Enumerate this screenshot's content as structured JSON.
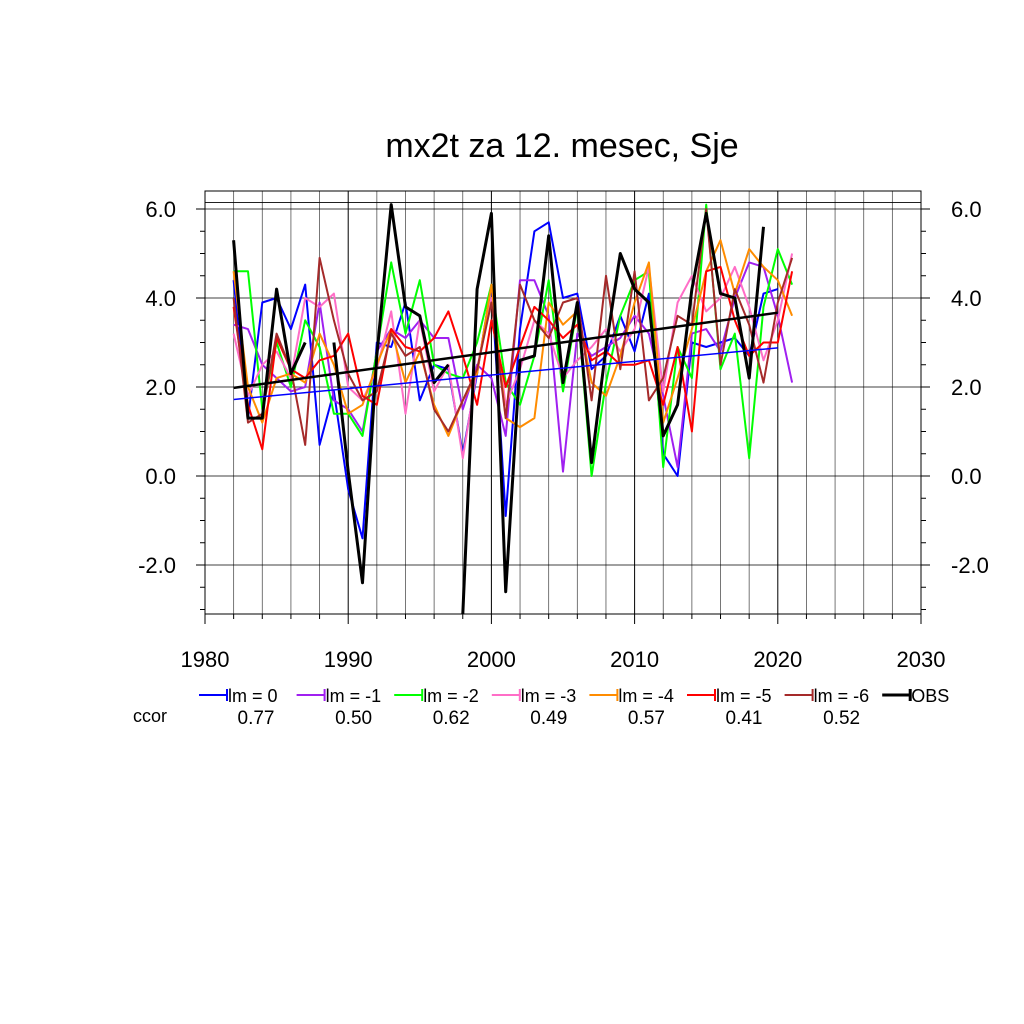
{
  "chart_data": {
    "type": "line",
    "title": "mx2t za 12. mesec, Sje",
    "xlabel": "",
    "ylabel": "",
    "xlim": [
      1980,
      2030
    ],
    "ylim": [
      -3.1,
      6.1
    ],
    "x_ticks": [
      1980,
      1990,
      2000,
      2010,
      2020,
      2030
    ],
    "x_tick_labels": [
      "1980",
      "1990",
      "2000",
      "2010",
      "2020",
      "2030"
    ],
    "y_ticks": [
      -2,
      0,
      2,
      4,
      6
    ],
    "y_tick_labels": [
      "-2.0",
      "0.0",
      "2.0",
      "4.0",
      "6.0"
    ],
    "grid": true,
    "legend_position": "bottom",
    "ccor_label": "ccor",
    "ccor_color": "#0000ff",
    "series": [
      {
        "name": "lm = 0",
        "color": "#0000ff",
        "ccor": "0.77",
        "width": 2,
        "x": [
          1982,
          1983,
          1984,
          1985,
          1986,
          1987,
          1988,
          1989,
          1990,
          1991,
          1992,
          1993,
          1994,
          1995,
          1996,
          1997,
          1998,
          1999,
          2000,
          2001,
          2002,
          2003,
          2004,
          2005,
          2006,
          2007,
          2008,
          2009,
          2010,
          2011,
          2012,
          2013,
          2014,
          2015,
          2016,
          2017,
          2018,
          2019,
          2020
        ],
        "y": [
          4.4,
          1.3,
          3.9,
          4.0,
          3.3,
          4.3,
          0.7,
          1.9,
          -0.3,
          -1.4,
          3.0,
          2.9,
          3.9,
          1.7,
          2.5,
          2.4,
          0.5,
          2.3,
          4.3,
          -0.9,
          3.3,
          5.5,
          5.7,
          4.0,
          4.1,
          2.4,
          2.7,
          3.6,
          2.8,
          4.1,
          0.5,
          0.0,
          3.0,
          2.9,
          3.0,
          3.1,
          2.7,
          4.1,
          4.2
        ]
      },
      {
        "name": "lm = -1",
        "color": "#a020f0",
        "ccor": "0.50",
        "width": 2,
        "x": [
          1982,
          1983,
          1984,
          1985,
          1986,
          1987,
          1988,
          1989,
          1990,
          1991,
          1992,
          1993,
          1994,
          1995,
          1996,
          1997,
          1998,
          1999,
          2000,
          2001,
          2002,
          2003,
          2004,
          2005,
          2006,
          2007,
          2008,
          2009,
          2010,
          2011,
          2012,
          2013,
          2014,
          2015,
          2016,
          2017,
          2018,
          2019,
          2020,
          2021
        ],
        "y": [
          3.4,
          3.3,
          2.5,
          2.2,
          1.9,
          2.0,
          3.9,
          1.7,
          1.5,
          1.0,
          2.8,
          3.3,
          3.1,
          3.5,
          3.1,
          3.1,
          1.5,
          2.5,
          2.2,
          0.9,
          4.4,
          4.4,
          3.6,
          0.1,
          3.2,
          2.7,
          2.9,
          3.1,
          3.6,
          3.2,
          1.8,
          0.2,
          3.2,
          3.3,
          2.8,
          4.0,
          4.8,
          4.7,
          3.6,
          2.1
        ]
      },
      {
        "name": "lm = -2",
        "color": "#00ff00",
        "ccor": "0.62",
        "width": 2,
        "x": [
          1982,
          1983,
          1984,
          1985,
          1986,
          1987,
          1988,
          1989,
          1990,
          1991,
          1992,
          1993,
          1994,
          1995,
          1996,
          1997,
          1998,
          1999,
          2000,
          2001,
          2002,
          2003,
          2004,
          2005,
          2006,
          2007,
          2008,
          2009,
          2010,
          2011,
          2012,
          2013,
          2014,
          2015,
          2016,
          2017,
          2018,
          2019,
          2020,
          2021
        ],
        "y": [
          4.6,
          4.6,
          1.5,
          3.0,
          2.0,
          3.5,
          2.9,
          1.4,
          1.4,
          0.9,
          2.8,
          4.8,
          3.2,
          4.4,
          2.5,
          2.3,
          2.2,
          3.0,
          4.3,
          2.1,
          1.6,
          2.7,
          4.4,
          1.9,
          3.8,
          0.0,
          2.1,
          3.6,
          4.4,
          4.6,
          0.2,
          2.9,
          2.2,
          6.1,
          2.4,
          3.2,
          0.4,
          3.8,
          5.1,
          4.3
        ]
      },
      {
        "name": "lm = -3",
        "color": "#ff6ec7",
        "ccor": "0.49",
        "width": 2,
        "x": [
          1982,
          1983,
          1984,
          1985,
          1986,
          1987,
          1988,
          1989,
          1990,
          1991,
          1992,
          1993,
          1994,
          1995,
          1996,
          1997,
          1998,
          1999,
          2000,
          2001,
          2002,
          2003,
          2004,
          2005,
          2006,
          2007,
          2008,
          2009,
          2010,
          2011,
          2012,
          2013,
          2014,
          2015,
          2016,
          2017,
          2018,
          2019,
          2020,
          2021
        ],
        "y": [
          3.2,
          1.8,
          2.5,
          2.8,
          2.2,
          4.0,
          3.8,
          4.1,
          2.0,
          1.7,
          2.4,
          3.7,
          1.4,
          3.5,
          1.9,
          2.5,
          0.4,
          2.4,
          4.0,
          1.6,
          2.4,
          3.5,
          3.2,
          2.2,
          2.6,
          2.9,
          3.3,
          2.8,
          3.3,
          4.7,
          1.9,
          3.9,
          4.5,
          3.7,
          4.0,
          4.7,
          3.8,
          2.6,
          3.5,
          5.0
        ]
      },
      {
        "name": "lm = -4",
        "color": "#ff8c00",
        "ccor": "0.57",
        "width": 2,
        "x": [
          1982,
          1983,
          1984,
          1985,
          1986,
          1987,
          1988,
          1989,
          1990,
          1991,
          1992,
          1993,
          1994,
          1995,
          1996,
          1997,
          1998,
          1999,
          2000,
          2001,
          2002,
          2003,
          2004,
          2005,
          2006,
          2007,
          2008,
          2009,
          2010,
          2011,
          2012,
          2013,
          2014,
          2015,
          2016,
          2017,
          2018,
          2019,
          2020,
          2021
        ],
        "y": [
          4.6,
          2.0,
          1.2,
          2.2,
          2.3,
          2.1,
          3.2,
          2.5,
          1.4,
          1.6,
          2.5,
          3.3,
          2.1,
          2.8,
          1.6,
          0.9,
          1.7,
          2.3,
          4.3,
          1.3,
          1.1,
          1.3,
          3.9,
          3.4,
          3.7,
          2.1,
          1.8,
          2.7,
          3.9,
          4.8,
          1.2,
          2.2,
          3.3,
          4.6,
          5.3,
          4.1,
          5.1,
          4.7,
          4.4,
          3.6
        ]
      },
      {
        "name": "lm = -5",
        "color": "#ff0000",
        "ccor": "0.41",
        "width": 2,
        "x": [
          1982,
          1983,
          1984,
          1985,
          1986,
          1987,
          1988,
          1989,
          1990,
          1991,
          1992,
          1993,
          1994,
          1995,
          1996,
          1997,
          1998,
          1999,
          2000,
          2001,
          2002,
          2003,
          2004,
          2005,
          2006,
          2007,
          2008,
          2009,
          2010,
          2011,
          2012,
          2013,
          2014,
          2015,
          2016,
          2017,
          2018,
          2019,
          2020,
          2021
        ],
        "y": [
          3.8,
          1.6,
          0.6,
          3.1,
          2.4,
          2.2,
          2.6,
          2.7,
          3.2,
          1.8,
          1.6,
          3.3,
          2.9,
          2.8,
          3.1,
          3.7,
          2.7,
          1.6,
          3.5,
          2.0,
          2.9,
          3.8,
          3.5,
          3.1,
          3.4,
          2.6,
          2.8,
          2.5,
          2.5,
          2.6,
          1.6,
          2.9,
          1.0,
          4.6,
          4.7,
          3.5,
          2.7,
          3.0,
          3.0,
          4.6
        ]
      },
      {
        "name": "lm = -6",
        "color": "#a52a2a",
        "ccor": "0.52",
        "width": 2,
        "x": [
          1982,
          1983,
          1984,
          1985,
          1986,
          1987,
          1988,
          1989,
          1990,
          1991,
          1992,
          1993,
          1994,
          1995,
          1996,
          1997,
          1998,
          1999,
          2000,
          2001,
          2002,
          2003,
          2004,
          2005,
          2006,
          2007,
          2008,
          2009,
          2010,
          2011,
          2012,
          2013,
          2014,
          2015,
          2016,
          2017,
          2018,
          2019,
          2020,
          2021
        ],
        "y": [
          4.0,
          1.2,
          1.4,
          3.2,
          2.4,
          0.7,
          4.9,
          3.5,
          2.3,
          1.7,
          1.9,
          3.2,
          2.7,
          2.9,
          1.5,
          1.0,
          1.7,
          2.4,
          3.9,
          1.3,
          4.3,
          3.5,
          3.1,
          3.9,
          4.0,
          1.7,
          4.5,
          2.4,
          4.6,
          1.7,
          2.2,
          3.6,
          3.4,
          6.0,
          2.5,
          4.2,
          3.4,
          2.1,
          3.9,
          4.9
        ]
      },
      {
        "name": "OBS",
        "color": "#000000",
        "ccor": "",
        "width": 3,
        "segments": [
          {
            "x": [
              1982,
              1983,
              1984,
              1985,
              1986,
              1987
            ],
            "y": [
              5.3,
              1.3,
              1.3,
              4.2,
              2.3,
              3.0
            ]
          },
          {
            "x": [
              1989,
              1990,
              1991,
              1992,
              1993,
              1994,
              1995,
              1996,
              1997
            ],
            "y": [
              3.0,
              0.1,
              -2.4,
              2.7,
              6.1,
              3.8,
              3.6,
              2.1,
              2.5
            ]
          },
          {
            "x": [
              1998,
              1999,
              2000,
              2001,
              2002,
              2003,
              2004,
              2005,
              2006,
              2007,
              2008,
              2009,
              2010,
              2011,
              2012,
              2013,
              2014,
              2015,
              2016,
              2017,
              2018,
              2019
            ],
            "y": [
              -3.1,
              4.2,
              5.9,
              -2.6,
              2.6,
              2.7,
              5.4,
              2.1,
              3.9,
              0.3,
              2.9,
              5.0,
              4.2,
              3.9,
              0.9,
              1.6,
              4.2,
              5.9,
              4.1,
              4.0,
              2.2,
              5.6
            ]
          }
        ]
      }
    ],
    "trend_lines": [
      {
        "name": "lm = 0 trend",
        "color": "#0000ff",
        "width": 1.5,
        "x": [
          1982,
          2020
        ],
        "y": [
          1.72,
          2.88
        ]
      },
      {
        "name": "OBS trend",
        "color": "#000000",
        "width": 2.5,
        "x": [
          1982,
          2020
        ],
        "y": [
          1.98,
          3.67
        ]
      }
    ]
  }
}
